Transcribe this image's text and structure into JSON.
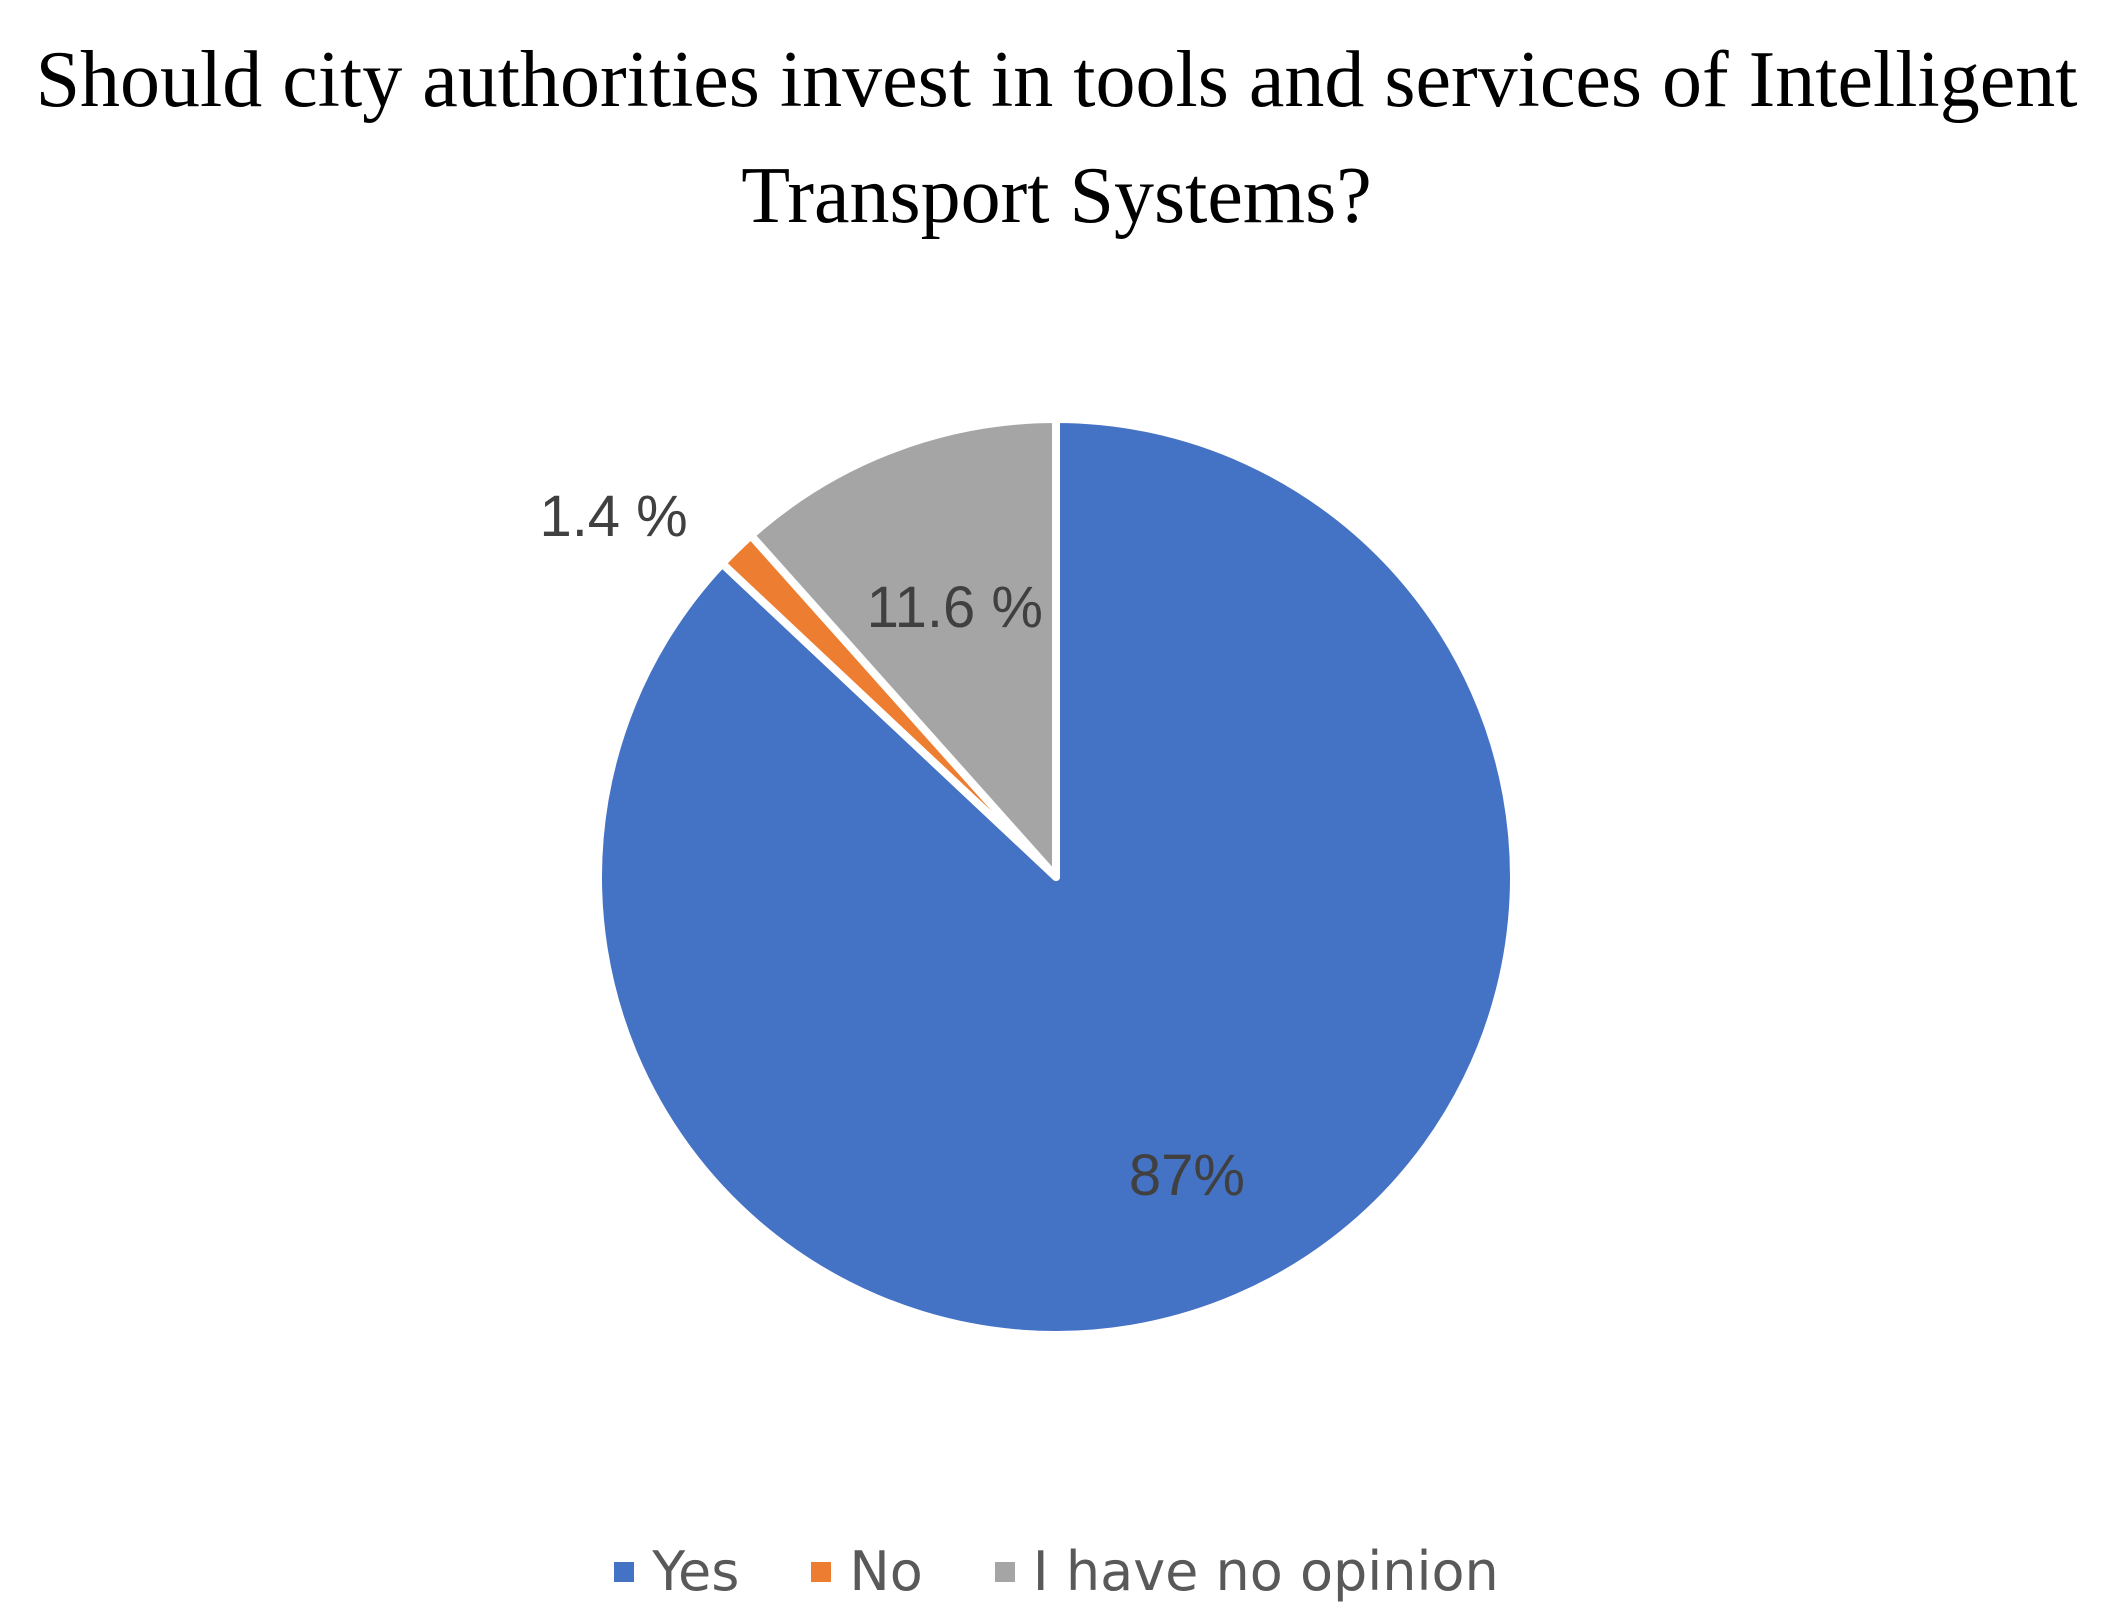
{
  "chart_data": {
    "type": "pie",
    "title": "Should city authorities invest in tools and services of Intelligent Transport Systems?",
    "categories": [
      "Yes",
      "No",
      "I have no opinion"
    ],
    "values": [
      87,
      1.4,
      11.6
    ],
    "value_labels": [
      "87%",
      "1.4 %",
      "11.6 %"
    ],
    "colors": [
      "#4472c4",
      "#ed7d31",
      "#a5a5a5"
    ],
    "legend": "bottom"
  }
}
